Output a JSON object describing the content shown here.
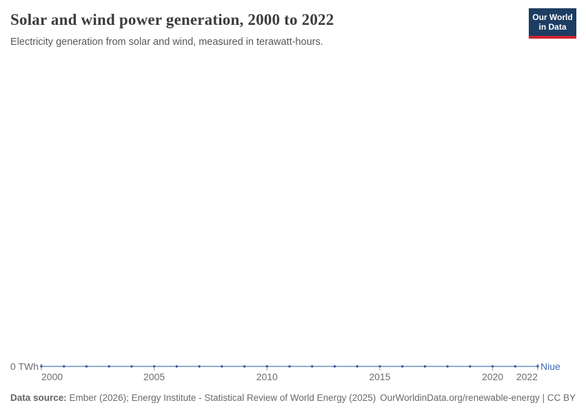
{
  "header": {
    "title": "Solar and wind power generation, 2000 to 2022",
    "subtitle": "Electricity generation from solar and wind, measured in terawatt-hours.",
    "logo": {
      "line1": "Our World",
      "line2": "in Data"
    }
  },
  "chart_data": {
    "type": "line",
    "title": "Solar and wind power generation, 2000 to 2022",
    "xlabel": "",
    "ylabel": "TWh",
    "xlim": [
      2000,
      2022
    ],
    "grid": false,
    "legend_position": "end-of-line",
    "x": [
      2000,
      2001,
      2002,
      2003,
      2004,
      2005,
      2006,
      2007,
      2008,
      2009,
      2010,
      2011,
      2012,
      2013,
      2014,
      2015,
      2016,
      2017,
      2018,
      2019,
      2020,
      2021,
      2022
    ],
    "series": [
      {
        "name": "Niue",
        "color": "#3d68b1",
        "values": [
          0,
          0,
          0,
          0,
          0,
          0,
          0,
          0,
          0,
          0,
          0,
          0,
          0,
          0,
          0,
          0,
          0,
          0,
          0,
          0,
          0,
          0,
          0
        ]
      }
    ],
    "x_ticks": [
      2000,
      2005,
      2010,
      2015,
      2020,
      2022
    ],
    "y_ticks": [
      {
        "value": 0,
        "label": "0 TWh"
      }
    ]
  },
  "colors": {
    "line": "#5377bb",
    "dot": "#35589f",
    "tick": "#9a9a9a",
    "axis_text": "#6d6d6d",
    "logo_bg": "#1d3d63",
    "logo_bar": "#cf2430",
    "entity_label": "#3d68b1"
  },
  "footer": {
    "source_label": "Data source:",
    "source_text": " Ember (2026); Energy Institute - Statistical Review of World Energy (2025)",
    "link": "OurWorldinData.org/renewable-energy | CC BY"
  }
}
